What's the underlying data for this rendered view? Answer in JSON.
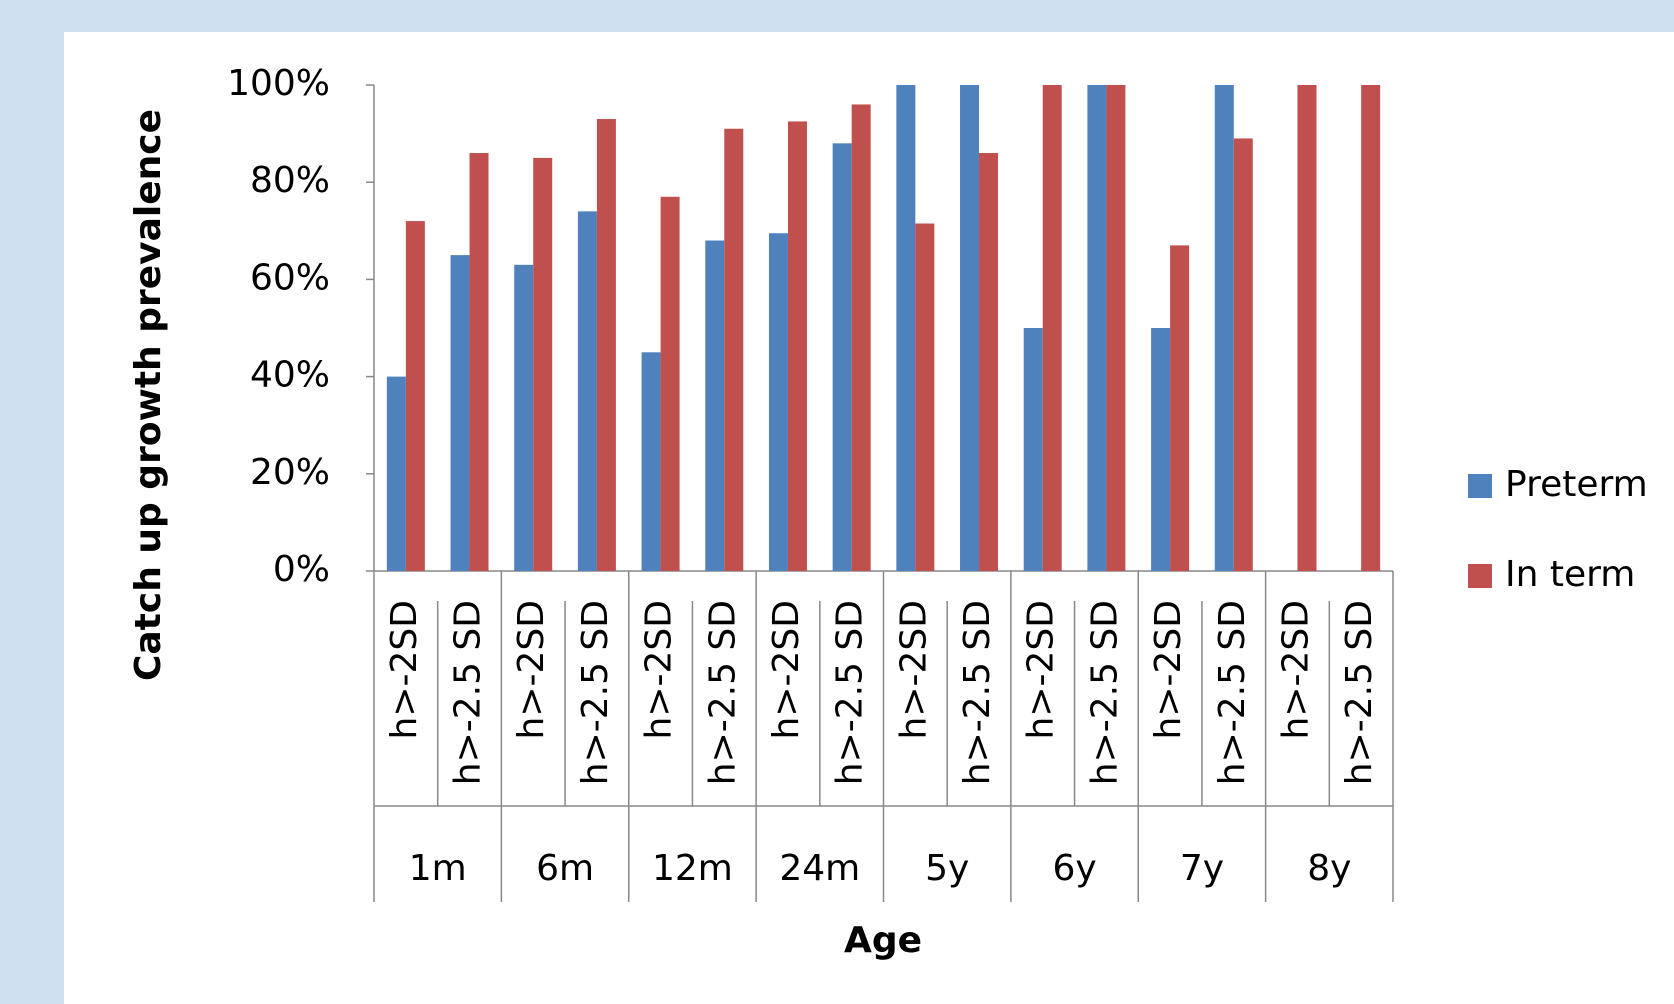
{
  "chart_data": {
    "type": "bar",
    "y_axis_label": "Catch up growth prevalence",
    "x_axis_label": "Age",
    "categories": [
      "h>-2SD",
      "h>-2.5 SD",
      "h>-2SD",
      "h>-2.5 SD",
      "h>-2SD",
      "h>-2.5 SD",
      "h>-2SD",
      "h>-2.5 SD",
      "h>-2SD",
      "h>-2.5 SD",
      "h>-2SD",
      "h>-2.5 SD",
      "h>-2SD",
      "h>-2.5 SD",
      "h>-2SD",
      "h>-2.5 SD"
    ],
    "category_groups": [
      "1m",
      "6m",
      "12m",
      "24m",
      "5y",
      "6y",
      "7y",
      "8y"
    ],
    "series": [
      {
        "name": "Preterm",
        "color": "#4f81bd",
        "values": [
          40,
          65,
          63,
          74,
          45,
          68,
          69.5,
          88,
          100,
          100,
          50,
          100,
          50,
          100,
          null,
          null
        ]
      },
      {
        "name": "In term",
        "color": "#c0504d",
        "values": [
          72,
          86,
          85,
          93,
          77,
          91,
          92.5,
          96,
          71.5,
          86,
          100,
          100,
          67,
          89,
          100,
          100
        ]
      }
    ],
    "ylim": [
      0,
      100
    ],
    "yticks": [
      {
        "value": 0,
        "label": "0%"
      },
      {
        "value": 20,
        "label": "20%"
      },
      {
        "value": 40,
        "label": "40%"
      },
      {
        "value": 60,
        "label": "60%"
      },
      {
        "value": 80,
        "label": "80%"
      },
      {
        "value": 100,
        "label": "100%"
      }
    ],
    "legend": "right"
  }
}
